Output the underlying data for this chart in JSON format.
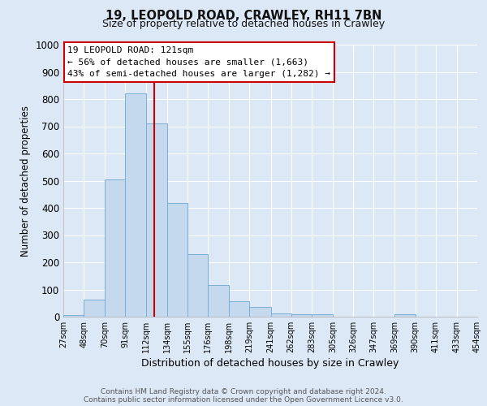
{
  "title": "19, LEOPOLD ROAD, CRAWLEY, RH11 7BN",
  "subtitle": "Size of property relative to detached houses in Crawley",
  "xlabel": "Distribution of detached houses by size in Crawley",
  "ylabel": "Number of detached properties",
  "bar_left_edges": [
    27,
    48,
    70,
    91,
    112,
    134,
    155,
    176,
    198,
    219,
    241,
    262,
    283,
    305,
    326,
    347,
    369,
    390,
    411,
    433
  ],
  "bar_widths": [
    21,
    22,
    21,
    21,
    22,
    21,
    21,
    22,
    21,
    22,
    21,
    21,
    22,
    21,
    21,
    22,
    21,
    21,
    22,
    21
  ],
  "bar_heights": [
    7,
    62,
    503,
    820,
    710,
    418,
    230,
    117,
    58,
    35,
    12,
    8,
    10,
    0,
    0,
    0,
    8,
    0,
    0,
    0
  ],
  "bar_color": "#c5d9ee",
  "bar_edge_color": "#7aaed4",
  "property_line_x": 121,
  "property_line_color": "#cc0000",
  "ylim": [
    0,
    1000
  ],
  "yticks": [
    0,
    100,
    200,
    300,
    400,
    500,
    600,
    700,
    800,
    900,
    1000
  ],
  "xtick_labels": [
    "27sqm",
    "48sqm",
    "70sqm",
    "91sqm",
    "112sqm",
    "134sqm",
    "155sqm",
    "176sqm",
    "198sqm",
    "219sqm",
    "241sqm",
    "262sqm",
    "283sqm",
    "305sqm",
    "326sqm",
    "347sqm",
    "369sqm",
    "390sqm",
    "411sqm",
    "433sqm",
    "454sqm"
  ],
  "annotation_line1": "19 LEOPOLD ROAD: 121sqm",
  "annotation_line2": "← 56% of detached houses are smaller (1,663)",
  "annotation_line3": "43% of semi-detached houses are larger (1,282) →",
  "annotation_box_edgecolor": "#cc0000",
  "background_color": "#dce8f5",
  "plot_bg_color": "#dce8f5",
  "grid_color": "#ffffff",
  "footer_line1": "Contains HM Land Registry data © Crown copyright and database right 2024.",
  "footer_line2": "Contains public sector information licensed under the Open Government Licence v3.0."
}
